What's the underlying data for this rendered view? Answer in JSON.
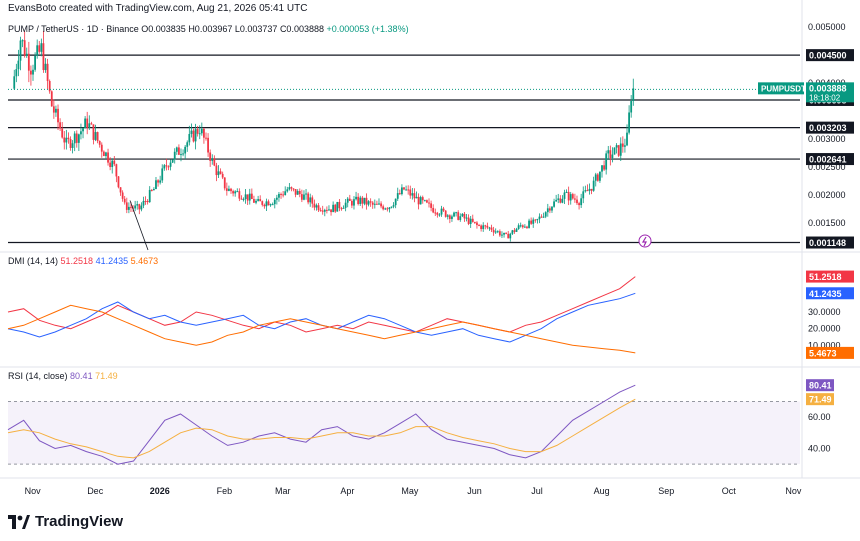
{
  "credit": "EvansBoto created with TradingView.com, Aug 21, 2026 05:41 UTC",
  "header": {
    "symbol": "PUMP / TetherUS · 1D · Binance",
    "open": "O0.003835",
    "high": "H0.003967",
    "low": "L0.003737",
    "close": "C0.003888",
    "change": "+0.000053 (+1.38%)"
  },
  "dmi_label": {
    "name": "DMI (14, 14)",
    "plus_di": "51.2518",
    "minus_di": "41.2435",
    "adx": "5.4673"
  },
  "rsi_label": {
    "name": "RSI (14, close)",
    "rsi": "80.41",
    "ma": "71.49"
  },
  "footer_brand": "TradingView",
  "colors": {
    "up": "#089981",
    "down": "#f23645",
    "plus_di": "#f23645",
    "minus_di": "#2962ff",
    "adx": "#ff6d00",
    "rsi": "#7e57c2",
    "rsi_ma": "#f5b041",
    "ticker_badge": "#089981"
  },
  "chart_data": {
    "type": "candlestick",
    "price_axis": {
      "ticks": [
        "0.005000",
        "0.004000",
        "0.003000",
        "0.002500",
        "0.002000",
        "0.001500"
      ],
      "ylim": [
        0.00105,
        0.0052
      ]
    },
    "time_axis": {
      "labels": [
        "Nov",
        "Dec",
        "2026",
        "Feb",
        "Mar",
        "Apr",
        "May",
        "Jun",
        "Jul",
        "Aug",
        "Sep",
        "Oct",
        "Nov"
      ]
    },
    "horizontal_levels": [
      "0.004500",
      "0.003698",
      "0.003203",
      "0.002641",
      "0.001148"
    ],
    "ticker_badge": {
      "symbol": "PUMPUSDT",
      "price": "0.003888",
      "countdown": "18:18:02"
    },
    "price_path": [
      [
        "2025-10-27",
        0.0039
      ],
      [
        "2025-10-31",
        0.0048
      ],
      [
        "2025-11-05",
        0.0043
      ],
      [
        "2025-11-10",
        0.0046
      ],
      [
        "2025-11-15",
        0.0036
      ],
      [
        "2025-11-22",
        0.0029
      ],
      [
        "2025-11-28",
        0.0031
      ],
      [
        "2025-12-02",
        0.0033
      ],
      [
        "2025-12-08",
        0.0029
      ],
      [
        "2025-12-15",
        0.0025
      ],
      [
        "2025-12-20",
        0.0018
      ],
      [
        "2025-12-27",
        0.00175
      ],
      [
        "2026-01-03",
        0.0021
      ],
      [
        "2026-01-10",
        0.0026
      ],
      [
        "2026-01-18",
        0.0029
      ],
      [
        "2026-01-25",
        0.0032
      ],
      [
        "2026-02-01",
        0.0025
      ],
      [
        "2026-02-07",
        0.0021
      ],
      [
        "2026-02-15",
        0.002
      ],
      [
        "2026-02-22",
        0.00185
      ],
      [
        "2026-03-01",
        0.0019
      ],
      [
        "2026-03-08",
        0.0021
      ],
      [
        "2026-03-15",
        0.002
      ],
      [
        "2026-03-22",
        0.0018
      ],
      [
        "2026-03-29",
        0.00175
      ],
      [
        "2026-04-05",
        0.00185
      ],
      [
        "2026-04-12",
        0.0019
      ],
      [
        "2026-04-19",
        0.0018
      ],
      [
        "2026-04-26",
        0.0018
      ],
      [
        "2026-05-03",
        0.0021
      ],
      [
        "2026-05-10",
        0.0019
      ],
      [
        "2026-05-17",
        0.00175
      ],
      [
        "2026-05-24",
        0.00165
      ],
      [
        "2026-05-31",
        0.0016
      ],
      [
        "2026-06-07",
        0.00145
      ],
      [
        "2026-06-14",
        0.0014
      ],
      [
        "2026-06-21",
        0.00125
      ],
      [
        "2026-06-28",
        0.00145
      ],
      [
        "2026-07-05",
        0.0015
      ],
      [
        "2026-07-12",
        0.0018
      ],
      [
        "2026-07-19",
        0.002
      ],
      [
        "2026-07-26",
        0.0019
      ],
      [
        "2026-08-02",
        0.0022
      ],
      [
        "2026-08-09",
        0.0027
      ],
      [
        "2026-08-14",
        0.0028
      ],
      [
        "2026-08-18",
        0.003
      ],
      [
        "2026-08-20",
        0.0038
      ],
      [
        "2026-08-21",
        0.003888
      ]
    ],
    "dmi": {
      "axis_ticks": [
        "30.0000",
        "20.0000",
        "10.0000"
      ],
      "ylim": [
        0,
        60
      ],
      "series": [
        {
          "name": "+DI",
          "last": 51.2518,
          "points": [
            30,
            32,
            25,
            22,
            20,
            24,
            28,
            34,
            30,
            26,
            22,
            24,
            30,
            28,
            25,
            22,
            20,
            24,
            22,
            18,
            20,
            22,
            20,
            24,
            22,
            20,
            18,
            22,
            26,
            24,
            22,
            20,
            18,
            22,
            24,
            28,
            32,
            36,
            40,
            44,
            51.25
          ]
        },
        {
          "name": "-DI",
          "last": 41.2435,
          "points": [
            20,
            18,
            15,
            18,
            22,
            26,
            32,
            36,
            30,
            26,
            28,
            24,
            22,
            24,
            26,
            28,
            22,
            20,
            24,
            26,
            22,
            20,
            24,
            28,
            26,
            22,
            18,
            16,
            18,
            20,
            16,
            14,
            12,
            16,
            20,
            26,
            30,
            34,
            36,
            38,
            41.24
          ]
        },
        {
          "name": "ADX",
          "last": 5.4673,
          "points": [
            20,
            22,
            26,
            30,
            34,
            32,
            30,
            26,
            22,
            18,
            14,
            12,
            10,
            12,
            16,
            18,
            22,
            24,
            26,
            24,
            22,
            20,
            18,
            16,
            14,
            16,
            18,
            20,
            22,
            24,
            22,
            20,
            18,
            16,
            14,
            12,
            10,
            9,
            8,
            7,
            5.47
          ]
        }
      ]
    },
    "rsi": {
      "axis_ticks": [
        "60.00",
        "40.00"
      ],
      "ylim": [
        25,
        85
      ],
      "band": [
        30,
        70
      ],
      "series": [
        {
          "name": "RSI",
          "last": 80.41,
          "points": [
            52,
            58,
            45,
            40,
            42,
            38,
            35,
            30,
            32,
            45,
            58,
            62,
            55,
            48,
            42,
            44,
            48,
            50,
            46,
            44,
            52,
            54,
            48,
            46,
            50,
            56,
            62,
            52,
            46,
            44,
            42,
            40,
            36,
            34,
            38,
            48,
            58,
            64,
            70,
            76,
            80.41
          ]
        },
        {
          "name": "RSI-based MA",
          "last": 71.49,
          "points": [
            50,
            52,
            50,
            46,
            43,
            41,
            38,
            35,
            34,
            38,
            44,
            50,
            53,
            52,
            48,
            46,
            46,
            47,
            47,
            46,
            48,
            50,
            50,
            48,
            48,
            50,
            54,
            54,
            50,
            47,
            45,
            43,
            40,
            38,
            38,
            42,
            48,
            54,
            60,
            66,
            71.49
          ]
        }
      ]
    }
  }
}
